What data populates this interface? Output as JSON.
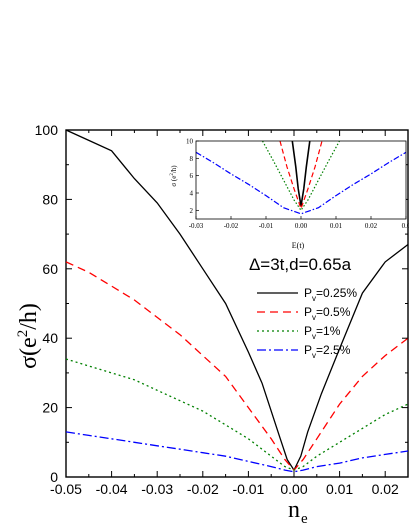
{
  "chart_data": [
    {
      "type": "line",
      "title": "",
      "xlabel": "n",
      "xlabel_sub": "e",
      "ylabel": "σ(e²/h)",
      "xlim": [
        -0.05,
        0.025
      ],
      "ylim": [
        0,
        100
      ],
      "xticks": [
        "-0.05",
        "-0.04",
        "-0.03",
        "-0.02",
        "-0.01",
        "0.00",
        "0.01",
        "0.02"
      ],
      "yticks": [
        "0",
        "20",
        "40",
        "60",
        "80",
        "100"
      ],
      "annotation": "Δ=3t,d=0.65a",
      "legend_position": "right",
      "series": [
        {
          "name": "P_v=0.25%",
          "label_main": "P",
          "label_sub": "v",
          "label_rest": "=0.25%",
          "color": "#000000",
          "dash": "solid",
          "x": [
            -0.05,
            -0.045,
            -0.04,
            -0.035,
            -0.03,
            -0.025,
            -0.02,
            -0.015,
            -0.01,
            -0.007,
            -0.005,
            -0.003,
            -0.0015,
            0.0,
            0.0015,
            0.003,
            0.006,
            0.01,
            0.015,
            0.02,
            0.025
          ],
          "y": [
            100,
            97,
            94,
            86,
            79,
            70,
            60,
            50,
            36,
            27,
            19,
            11,
            5,
            2,
            6,
            13,
            24,
            37,
            53,
            62,
            67
          ]
        },
        {
          "name": "P_v=0.5%",
          "label_main": "P",
          "label_sub": "v",
          "label_rest": "=0.5%",
          "color": "#ff0000",
          "dash": "8,5",
          "x": [
            -0.05,
            -0.045,
            -0.04,
            -0.035,
            -0.03,
            -0.025,
            -0.02,
            -0.015,
            -0.01,
            -0.005,
            -0.002,
            0.0,
            0.002,
            0.005,
            0.01,
            0.015,
            0.02,
            0.025
          ],
          "y": [
            62,
            59,
            55,
            51,
            46,
            41,
            35,
            29,
            20,
            11,
            5,
            2,
            5,
            11,
            21,
            29,
            35,
            40
          ]
        },
        {
          "name": "P_v=1%",
          "label_main": "P",
          "label_sub": "v",
          "label_rest": "=1%",
          "color": "#008000",
          "dash": "2,3",
          "x": [
            -0.05,
            -0.045,
            -0.04,
            -0.035,
            -0.03,
            -0.025,
            -0.02,
            -0.015,
            -0.01,
            -0.005,
            -0.002,
            0.0,
            0.002,
            0.005,
            0.01,
            0.015,
            0.02,
            0.025
          ],
          "y": [
            34,
            32,
            30,
            28,
            25,
            22,
            19,
            15,
            11,
            6,
            3,
            2,
            3,
            6,
            10,
            14,
            18,
            21
          ]
        },
        {
          "name": "P_v=2.5%",
          "label_main": "P",
          "label_sub": "v",
          "label_rest": "=2.5%",
          "color": "#0000ff",
          "dash": "9,3,2,3",
          "x": [
            -0.05,
            -0.045,
            -0.04,
            -0.035,
            -0.03,
            -0.025,
            -0.02,
            -0.015,
            -0.01,
            -0.005,
            -0.002,
            0.0,
            0.002,
            0.005,
            0.01,
            0.015,
            0.02,
            0.025
          ],
          "y": [
            13,
            12,
            11,
            10,
            9,
            8,
            7,
            6,
            4.5,
            3,
            2,
            1.5,
            2,
            3,
            4,
            5.5,
            6.5,
            7.5
          ]
        }
      ]
    },
    {
      "type": "line",
      "title": "",
      "xlabel": "E(t)",
      "ylabel": "σ (e²/h)",
      "xlim": [
        -0.03,
        0.03
      ],
      "ylim": [
        1,
        10
      ],
      "xticks": [
        "-0.03",
        "-0.02",
        "-0.01",
        "0.00",
        "0.01",
        "0.02",
        "0.0"
      ],
      "yticks": [
        "2",
        "4",
        "6",
        "8",
        "10"
      ],
      "series": [
        {
          "color": "#000000",
          "dash": "solid",
          "x": [
            -0.0025,
            -0.0015,
            -0.0008,
            0.0,
            0.0008,
            0.0015,
            0.0025
          ],
          "y": [
            10,
            7,
            4.5,
            2.5,
            4.5,
            7,
            10
          ]
        },
        {
          "color": "#ff0000",
          "dash": "5,3",
          "x": [
            -0.006,
            -0.004,
            -0.002,
            0.0,
            0.002,
            0.004,
            0.006
          ],
          "y": [
            10,
            7,
            4.5,
            2.2,
            4.5,
            7,
            10
          ]
        },
        {
          "color": "#008000",
          "dash": "1.5,2",
          "x": [
            -0.011,
            -0.008,
            -0.005,
            -0.002,
            0.0,
            0.002,
            0.005,
            0.008,
            0.011
          ],
          "y": [
            10,
            7.8,
            5.5,
            3.2,
            2.0,
            3.2,
            5.5,
            7.8,
            10
          ]
        },
        {
          "color": "#0000ff",
          "dash": "6,2,1.5,2",
          "x": [
            -0.03,
            -0.025,
            -0.02,
            -0.015,
            -0.01,
            -0.005,
            0.0,
            0.005,
            0.01,
            0.015,
            0.02,
            0.025,
            0.03
          ],
          "y": [
            8.7,
            7.5,
            6.2,
            5.0,
            3.7,
            2.3,
            1.6,
            2.3,
            3.7,
            5.0,
            6.2,
            7.5,
            8.7
          ]
        }
      ]
    }
  ]
}
